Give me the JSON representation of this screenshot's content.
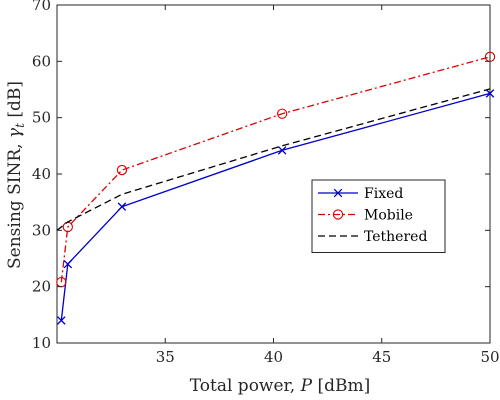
{
  "chart_data": {
    "type": "line",
    "xlabel": "Total power, ",
    "xlabel_symbol": "P",
    "xlabel_unit": " [dBm]",
    "ylabel": "Sensing SINR, ",
    "ylabel_symbol": "γ",
    "ylabel_subscript": "t",
    "ylabel_unit": " [dB]",
    "xlim": [
      30,
      50
    ],
    "ylim": [
      10,
      70
    ],
    "xticks": [
      35,
      40,
      45,
      50
    ],
    "yticks": [
      10,
      20,
      30,
      40,
      50,
      60,
      70
    ],
    "grid": false,
    "box": true,
    "legend_position": "center-right",
    "series": [
      {
        "name": "Fixed",
        "color": "#0000cc",
        "line_style": "solid",
        "marker": "x",
        "x": [
          30.2,
          30.5,
          33.0,
          40.4,
          50.0
        ],
        "y": [
          14.0,
          24.0,
          34.2,
          44.2,
          54.3
        ]
      },
      {
        "name": "Mobile",
        "color": "#dd0000",
        "line_style": "dashdot",
        "marker": "circle",
        "x": [
          30.2,
          30.5,
          33.0,
          40.4,
          50.0
        ],
        "y": [
          20.8,
          30.6,
          40.7,
          50.7,
          60.8
        ]
      },
      {
        "name": "Tethered",
        "color": "#000000",
        "line_style": "dashed",
        "marker": "none",
        "x": [
          30.0,
          30.5,
          33.0,
          40.4,
          50.0
        ],
        "y": [
          30.0,
          31.5,
          36.4,
          45.0,
          55.1
        ]
      }
    ]
  }
}
